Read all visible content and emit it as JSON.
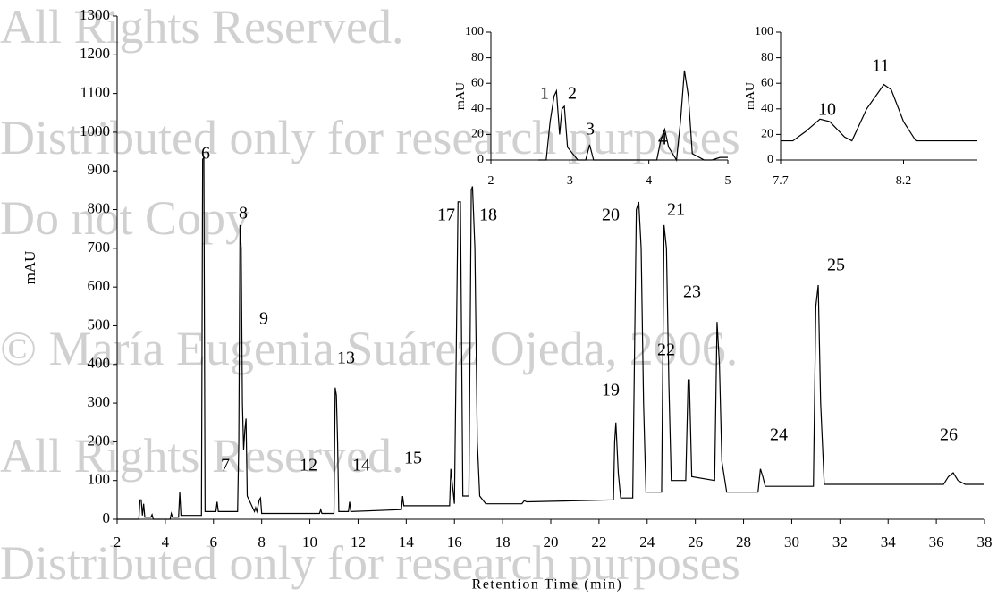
{
  "watermark": [
    "All Rights Reserved.",
    "Distributed only for research purposes",
    "Do not Copy",
    "© María Eugenia Suárez Ojeda, 2006.",
    "All Rights Reserved.",
    "Distributed only for research purposes"
  ],
  "chart_data": [
    {
      "type": "line",
      "xlabel": "Retention Time (min)",
      "ylabel": "mAU",
      "color": "#000000",
      "xlim": [
        2,
        38
      ],
      "xticks": [
        2,
        4,
        6,
        8,
        10,
        12,
        14,
        16,
        18,
        20,
        22,
        24,
        26,
        28,
        30,
        32,
        34,
        36,
        38
      ],
      "ylim": [
        0,
        1300
      ],
      "yticks": [
        0,
        100,
        200,
        300,
        400,
        500,
        600,
        700,
        800,
        900,
        1000,
        1100,
        1200,
        1300
      ],
      "x": [
        2.0,
        2.9,
        2.95,
        3.0,
        3.05,
        3.1,
        3.15,
        3.4,
        3.45,
        3.5,
        4.2,
        4.25,
        4.3,
        4.55,
        4.6,
        4.65,
        5.5,
        5.55,
        5.6,
        5.65,
        6.1,
        6.15,
        6.2,
        7.0,
        7.05,
        7.1,
        7.15,
        7.2,
        7.25,
        7.3,
        7.35,
        7.4,
        7.7,
        7.75,
        7.8,
        7.9,
        7.95,
        8.0,
        10.4,
        10.45,
        10.5,
        11.0,
        11.05,
        11.1,
        11.15,
        11.2,
        11.6,
        11.65,
        11.7,
        13.8,
        13.85,
        13.9,
        15.8,
        15.85,
        15.9,
        16.0,
        16.15,
        16.25,
        16.35,
        16.6,
        16.7,
        16.75,
        16.85,
        16.95,
        17.05,
        17.3,
        18.8,
        18.9,
        19.0,
        22.6,
        22.65,
        22.7,
        22.8,
        22.9,
        23.4,
        23.55,
        23.65,
        23.75,
        23.85,
        23.95,
        24.6,
        24.7,
        24.8,
        24.9,
        25.0,
        25.6,
        25.7,
        25.75,
        25.85,
        26.8,
        26.9,
        27.0,
        27.1,
        27.3,
        28.6,
        28.7,
        28.8,
        28.9,
        30.9,
        31.0,
        31.1,
        31.2,
        31.35,
        36.3,
        36.5,
        36.7,
        36.9,
        37.2,
        38.0
      ],
      "values": [
        0,
        0,
        50,
        50,
        10,
        40,
        5,
        5,
        12,
        0,
        0,
        15,
        5,
        5,
        70,
        10,
        10,
        930,
        935,
        20,
        20,
        45,
        20,
        20,
        200,
        760,
        700,
        300,
        180,
        230,
        260,
        60,
        20,
        30,
        20,
        50,
        55,
        15,
        15,
        25,
        15,
        15,
        340,
        320,
        200,
        20,
        20,
        45,
        20,
        25,
        60,
        35,
        35,
        130,
        100,
        40,
        820,
        820,
        60,
        60,
        850,
        860,
        700,
        200,
        60,
        40,
        40,
        48,
        45,
        50,
        200,
        250,
        120,
        55,
        55,
        800,
        820,
        700,
        300,
        70,
        70,
        760,
        700,
        350,
        100,
        100,
        360,
        360,
        110,
        100,
        510,
        400,
        150,
        70,
        70,
        130,
        110,
        85,
        85,
        550,
        605,
        300,
        90,
        90,
        110,
        120,
        100,
        90,
        90
      ],
      "annotations": [
        "6",
        "8",
        "9",
        "7",
        "12",
        "13",
        "14",
        "15",
        "17",
        "18",
        "19",
        "20",
        "21",
        "22",
        "23",
        "24",
        "25",
        "26"
      ]
    },
    {
      "type": "line",
      "ylabel": "mAU",
      "color": "#000000",
      "xlim": [
        2,
        5
      ],
      "xticks": [
        2,
        3,
        4,
        5
      ],
      "ylim": [
        0,
        100
      ],
      "yticks": [
        0,
        20,
        40,
        60,
        80,
        100
      ],
      "x": [
        2.6,
        2.7,
        2.75,
        2.8,
        2.83,
        2.87,
        2.9,
        2.93,
        2.97,
        3.1,
        3.2,
        3.25,
        3.3,
        4.1,
        4.15,
        4.2,
        4.25,
        4.35,
        4.4,
        4.45,
        4.5,
        4.55,
        4.7,
        4.8,
        4.9,
        5.0
      ],
      "values": [
        0,
        0,
        30,
        50,
        54,
        20,
        40,
        42,
        10,
        0,
        0,
        12,
        0,
        0,
        15,
        24,
        10,
        0,
        30,
        70,
        50,
        5,
        0,
        0,
        2,
        2
      ],
      "annotations": [
        "1",
        "2",
        "3",
        "4"
      ]
    },
    {
      "type": "line",
      "ylabel": "mAU",
      "color": "#000000",
      "xlim": [
        7.7,
        8.5
      ],
      "xticks": [
        7.7,
        8.2
      ],
      "ylim": [
        0,
        100
      ],
      "yticks": [
        0,
        20,
        40,
        60,
        80,
        100
      ],
      "x": [
        7.7,
        7.75,
        7.8,
        7.86,
        7.9,
        7.96,
        7.99,
        8.05,
        8.12,
        8.15,
        8.2,
        8.25,
        8.5
      ],
      "values": [
        15,
        15,
        22,
        32,
        30,
        18,
        15,
        40,
        59,
        55,
        30,
        15,
        15
      ],
      "annotations": [
        "10",
        "11"
      ]
    }
  ]
}
